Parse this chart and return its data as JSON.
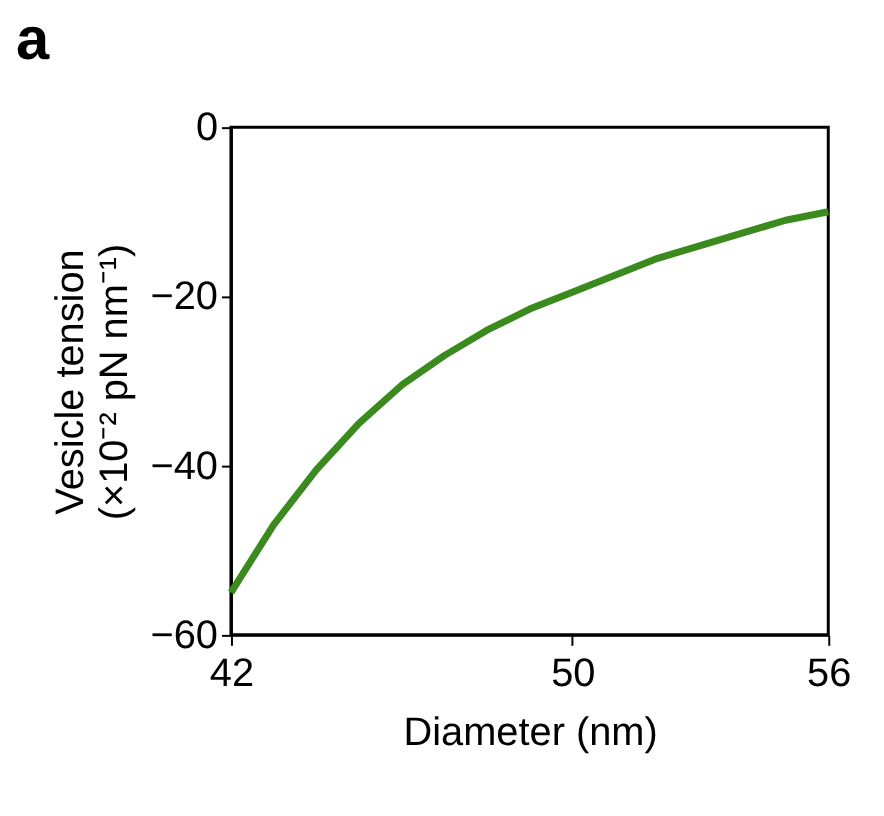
{
  "chart_data": {
    "type": "line",
    "xlabel": "Diameter (nm)",
    "ylabel": "Vesicle tension\n(×10⁻² pN nm⁻¹)",
    "annotations": [
      "a"
    ],
    "x": [
      42,
      43,
      44,
      45,
      46,
      47,
      48,
      49,
      50,
      51,
      52,
      53,
      54,
      55,
      56
    ],
    "series": [
      {
        "color": "#3a8a1e",
        "values": [
          -55,
          -47,
          -40.5,
          -35,
          -30.5,
          -27,
          -24,
          -21.5,
          -19.5,
          -17.5,
          -15.5,
          -14,
          -12.5,
          -11,
          -10
        ]
      }
    ],
    "xlim": [
      42,
      56
    ],
    "xticks": [
      42,
      50,
      56
    ],
    "ylim": [
      -60,
      0
    ],
    "yticks": [
      -60,
      -40,
      -20,
      0
    ],
    "grid": false,
    "legend": false,
    "marker": "none",
    "line_style": "solid"
  }
}
